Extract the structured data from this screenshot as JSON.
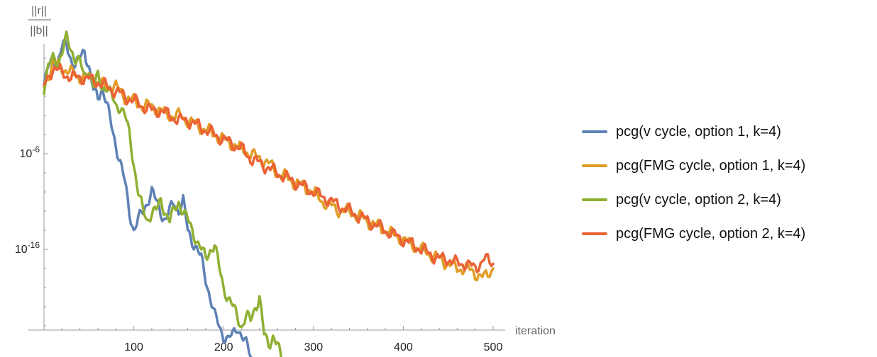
{
  "chart_data": {
    "type": "line",
    "y_scale": "log",
    "ylabel_numerator": "||r||",
    "ylabel_denominator": "||b||",
    "xlabel": "iteration",
    "x_ticks": [
      100,
      200,
      300,
      400,
      500
    ],
    "y_ticks": [
      "10^-6",
      "10^-16"
    ],
    "xlim": [
      0,
      505
    ],
    "ylim_log10": [
      -30,
      8
    ],
    "grid": false,
    "legend_position": "right",
    "series": [
      {
        "name": "pcg(v cycle, option 1, k=4)",
        "color": "#5e81b5",
        "points": [
          [
            0,
            1
          ],
          [
            5,
            3
          ],
          [
            10,
            4
          ],
          [
            15,
            3.5
          ],
          [
            20,
            5
          ],
          [
            25,
            5.5
          ],
          [
            30,
            4
          ],
          [
            35,
            3
          ],
          [
            40,
            4
          ],
          [
            45,
            5
          ],
          [
            50,
            3
          ],
          [
            55,
            0.5
          ],
          [
            60,
            0
          ],
          [
            65,
            1
          ],
          [
            70,
            -1
          ],
          [
            75,
            -3
          ],
          [
            80,
            -5
          ],
          [
            85,
            -7
          ],
          [
            90,
            -9
          ],
          [
            95,
            -12
          ],
          [
            100,
            -14
          ],
          [
            105,
            -13
          ],
          [
            110,
            -12
          ],
          [
            115,
            -11
          ],
          [
            120,
            -10
          ],
          [
            125,
            -11
          ],
          [
            130,
            -12
          ],
          [
            135,
            -13
          ],
          [
            140,
            -12
          ],
          [
            145,
            -11
          ],
          [
            150,
            -12
          ],
          [
            155,
            -11
          ],
          [
            160,
            -14
          ],
          [
            165,
            -15
          ],
          [
            170,
            -16
          ],
          [
            175,
            -17
          ],
          [
            180,
            -19
          ],
          [
            185,
            -21
          ],
          [
            190,
            -23
          ],
          [
            195,
            -24
          ],
          [
            200,
            -25
          ],
          [
            205,
            -25.5
          ],
          [
            210,
            -25
          ],
          [
            215,
            -24
          ],
          [
            220,
            -25
          ],
          [
            225,
            -26
          ],
          [
            230,
            -27
          ],
          [
            235,
            -28
          ]
        ]
      },
      {
        "name": "pcg(FMG cycle, option 1, k=4)",
        "color": "#e19c24",
        "points": [
          [
            0,
            1
          ],
          [
            10,
            3.5
          ],
          [
            20,
            3
          ],
          [
            30,
            2.5
          ],
          [
            40,
            2
          ],
          [
            50,
            2
          ],
          [
            60,
            1.5
          ],
          [
            70,
            1
          ],
          [
            80,
            1
          ],
          [
            90,
            0
          ],
          [
            100,
            -0.5
          ],
          [
            110,
            -1
          ],
          [
            120,
            -1
          ],
          [
            130,
            -1.5
          ],
          [
            140,
            -2
          ],
          [
            150,
            -2
          ],
          [
            160,
            -2.5
          ],
          [
            170,
            -3
          ],
          [
            180,
            -3.5
          ],
          [
            190,
            -4
          ],
          [
            200,
            -4.5
          ],
          [
            210,
            -5
          ],
          [
            220,
            -5.5
          ],
          [
            230,
            -6
          ],
          [
            240,
            -6.5
          ],
          [
            250,
            -7
          ],
          [
            260,
            -8
          ],
          [
            270,
            -8.5
          ],
          [
            280,
            -9
          ],
          [
            290,
            -9.5
          ],
          [
            300,
            -10
          ],
          [
            310,
            -11
          ],
          [
            320,
            -11.5
          ],
          [
            330,
            -12
          ],
          [
            340,
            -12
          ],
          [
            350,
            -12.5
          ],
          [
            360,
            -13
          ],
          [
            370,
            -13.5
          ],
          [
            380,
            -14
          ],
          [
            390,
            -14.5
          ],
          [
            400,
            -15
          ],
          [
            410,
            -15.5
          ],
          [
            420,
            -16
          ],
          [
            430,
            -16.5
          ],
          [
            440,
            -17
          ],
          [
            450,
            -17.5
          ],
          [
            460,
            -18
          ],
          [
            470,
            -18
          ],
          [
            480,
            -18.5
          ],
          [
            490,
            -19
          ],
          [
            500,
            -18
          ]
        ]
      },
      {
        "name": "pcg(v cycle, option 2, k=4)",
        "color": "#8fb032",
        "points": [
          [
            0,
            1
          ],
          [
            5,
            3
          ],
          [
            10,
            4
          ],
          [
            15,
            3.5
          ],
          [
            20,
            4.5
          ],
          [
            25,
            6
          ],
          [
            30,
            5
          ],
          [
            35,
            4
          ],
          [
            40,
            3.5
          ],
          [
            45,
            2
          ],
          [
            50,
            3
          ],
          [
            55,
            1
          ],
          [
            60,
            2
          ],
          [
            65,
            1
          ],
          [
            70,
            1
          ],
          [
            75,
            0
          ],
          [
            80,
            -1
          ],
          [
            85,
            -1
          ],
          [
            90,
            -2
          ],
          [
            95,
            -4
          ],
          [
            100,
            -7
          ],
          [
            105,
            -10
          ],
          [
            110,
            -12
          ],
          [
            115,
            -13
          ],
          [
            120,
            -12
          ],
          [
            125,
            -12
          ],
          [
            130,
            -11
          ],
          [
            135,
            -12
          ],
          [
            140,
            -13
          ],
          [
            145,
            -12
          ],
          [
            150,
            -11
          ],
          [
            155,
            -12
          ],
          [
            160,
            -13
          ],
          [
            165,
            -14
          ],
          [
            170,
            -15
          ],
          [
            175,
            -16
          ],
          [
            180,
            -17
          ],
          [
            185,
            -16
          ],
          [
            190,
            -15.5
          ],
          [
            195,
            -18
          ],
          [
            200,
            -20
          ],
          [
            205,
            -21
          ],
          [
            210,
            -22
          ],
          [
            215,
            -23
          ],
          [
            220,
            -24
          ],
          [
            225,
            -23
          ],
          [
            230,
            -23.5
          ],
          [
            235,
            -22
          ],
          [
            240,
            -21
          ],
          [
            245,
            -25
          ],
          [
            250,
            -26
          ],
          [
            255,
            -25
          ],
          [
            260,
            -26
          ],
          [
            265,
            -28
          ]
        ]
      },
      {
        "name": "pcg(FMG cycle, option 2, k=4)",
        "color": "#eb6235",
        "points": [
          [
            0,
            1
          ],
          [
            10,
            3
          ],
          [
            20,
            2.5
          ],
          [
            30,
            2
          ],
          [
            40,
            2
          ],
          [
            50,
            1.8
          ],
          [
            60,
            1.5
          ],
          [
            70,
            1
          ],
          [
            80,
            0.5
          ],
          [
            90,
            0
          ],
          [
            100,
            -0.5
          ],
          [
            110,
            -1
          ],
          [
            120,
            -1.5
          ],
          [
            130,
            -1.5
          ],
          [
            140,
            -2
          ],
          [
            150,
            -2.5
          ],
          [
            160,
            -2.5
          ],
          [
            170,
            -3
          ],
          [
            180,
            -3.5
          ],
          [
            190,
            -4
          ],
          [
            200,
            -4.5
          ],
          [
            210,
            -5
          ],
          [
            220,
            -5.5
          ],
          [
            230,
            -6.5
          ],
          [
            240,
            -7
          ],
          [
            250,
            -7.5
          ],
          [
            260,
            -8
          ],
          [
            270,
            -8.5
          ],
          [
            280,
            -9
          ],
          [
            290,
            -9.5
          ],
          [
            300,
            -10
          ],
          [
            310,
            -10.5
          ],
          [
            320,
            -11
          ],
          [
            330,
            -11.5
          ],
          [
            340,
            -12
          ],
          [
            350,
            -12.5
          ],
          [
            360,
            -13
          ],
          [
            370,
            -13.5
          ],
          [
            380,
            -14
          ],
          [
            390,
            -14.5
          ],
          [
            400,
            -15
          ],
          [
            410,
            -15.5
          ],
          [
            420,
            -16
          ],
          [
            430,
            -16.5
          ],
          [
            440,
            -17
          ],
          [
            450,
            -17
          ],
          [
            460,
            -17.5
          ],
          [
            470,
            -17.5
          ],
          [
            480,
            -18
          ],
          [
            490,
            -17
          ],
          [
            500,
            -17.5
          ]
        ]
      }
    ]
  }
}
